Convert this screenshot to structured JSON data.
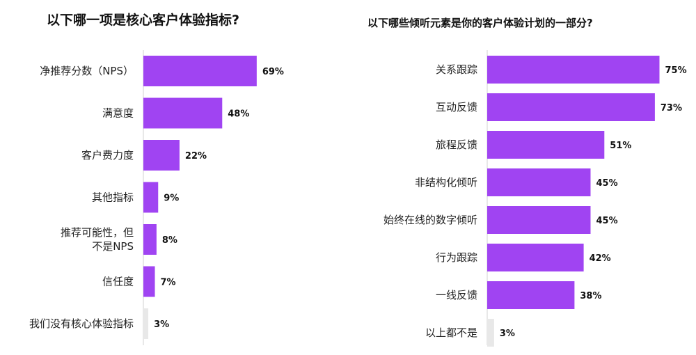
{
  "chart_data": [
    {
      "type": "bar",
      "orientation": "horizontal",
      "title": "以下哪一项是核心客户体验指标?",
      "categories": [
        "净推荐分数（NPS）",
        "满意度",
        "客户费力度",
        "其他指标",
        "推荐可能性，但\n不是NPS",
        "信任度",
        "我们没有核心体验指标"
      ],
      "values": [
        69,
        48,
        22,
        9,
        8,
        7,
        3
      ],
      "value_labels": [
        "69%",
        "48%",
        "22%",
        "9%",
        "8%",
        "7%",
        "3%"
      ],
      "bar_colors": [
        "#a044f2",
        "#a044f2",
        "#a044f2",
        "#a044f2",
        "#a044f2",
        "#a044f2",
        "#e8e8e8"
      ],
      "xlim": [
        0,
        100
      ],
      "grid": false,
      "legend": "none"
    },
    {
      "type": "bar",
      "orientation": "horizontal",
      "title": "以下哪些倾听元素是你的客户体验计划的一部分?",
      "categories": [
        "关系跟踪",
        "互动反馈",
        "旅程反馈",
        "非结构化倾听",
        "始终在线的数字倾听",
        "行为跟踪",
        "一线反馈",
        "以上都不是"
      ],
      "values": [
        75,
        73,
        51,
        45,
        45,
        42,
        38,
        3
      ],
      "value_labels": [
        "75%",
        "73%",
        "51%",
        "45%",
        "45%",
        "42%",
        "38%",
        "3%"
      ],
      "bar_colors": [
        "#a044f2",
        "#a044f2",
        "#a044f2",
        "#a044f2",
        "#a044f2",
        "#a044f2",
        "#a044f2",
        "#e8e8e8"
      ],
      "xlim": [
        0,
        100
      ],
      "grid": false,
      "legend": "none"
    }
  ],
  "colors": {
    "accent": "#a044f2",
    "muted": "#e8e8e8",
    "axis": "#d0d0d0"
  }
}
